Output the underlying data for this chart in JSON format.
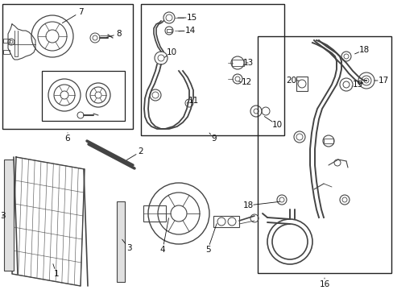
{
  "bg_color": "#ffffff",
  "line_color": "#444444",
  "border_color": "#222222",
  "label_color": "#111111",
  "fig_width": 4.89,
  "fig_height": 3.6,
  "dpi": 100
}
